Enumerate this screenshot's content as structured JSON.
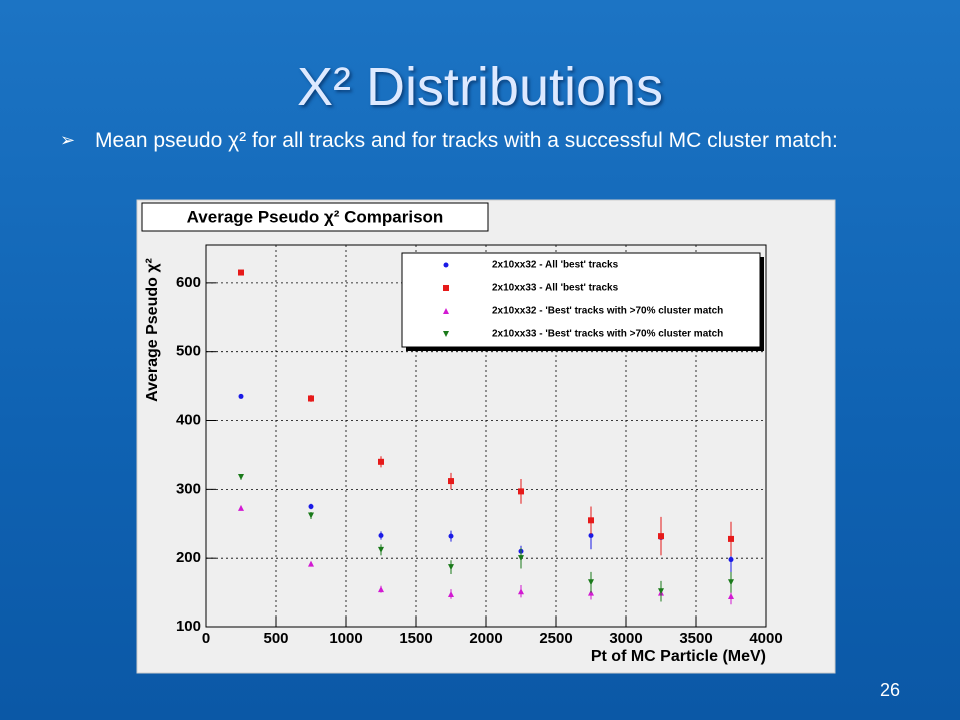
{
  "slide": {
    "title": "X² Distributions",
    "bullet": "Mean pseudo χ² for all tracks and for tracks with a successful MC cluster match:",
    "page_number": "26"
  },
  "chart_data": {
    "type": "scatter",
    "title": "Average Pseudo χ² Comparison",
    "x_label": "Pt of MC Particle (MeV)",
    "y_label": "Average Pseudo χ²",
    "x": [
      250,
      750,
      1250,
      1750,
      2250,
      2750,
      3250,
      3750
    ],
    "xlim": [
      0,
      4000
    ],
    "xticks": [
      0,
      500,
      1000,
      1500,
      2000,
      2500,
      3000,
      3500,
      4000
    ],
    "ylim": [
      100,
      655
    ],
    "yticks": [
      100,
      200,
      300,
      400,
      500,
      600
    ],
    "grid": true,
    "legend": "top-right",
    "series": [
      {
        "name": "2x10xx32 - All 'best' tracks",
        "color": "#1a1ae6",
        "marker": "circle",
        "values": [
          435,
          275,
          233,
          232,
          210,
          233,
          230,
          198
        ],
        "errors": [
          3,
          4,
          6,
          8,
          8,
          20,
          20,
          20
        ]
      },
      {
        "name": "2x10xx33 - All 'best' tracks",
        "color": "#e61a1a",
        "marker": "square",
        "values": [
          615,
          432,
          340,
          312,
          297,
          255,
          232,
          228
        ],
        "errors": [
          3,
          5,
          8,
          12,
          18,
          20,
          28,
          25
        ]
      },
      {
        "name": "2x10xx32 - 'Best' tracks with >70% cluster match",
        "color": "#d21ad2",
        "marker": "triangle-up",
        "values": [
          273,
          192,
          155,
          148,
          152,
          150,
          150,
          145
        ],
        "errors": [
          2,
          3,
          5,
          7,
          9,
          10,
          12,
          12
        ]
      },
      {
        "name": "2x10xx33 - 'Best' tracks with >70% cluster match",
        "color": "#1a7a1a",
        "marker": "triangle-down",
        "values": [
          318,
          262,
          212,
          187,
          200,
          165,
          152,
          165
        ],
        "errors": [
          4,
          5,
          8,
          10,
          15,
          15,
          15,
          15
        ]
      }
    ]
  }
}
